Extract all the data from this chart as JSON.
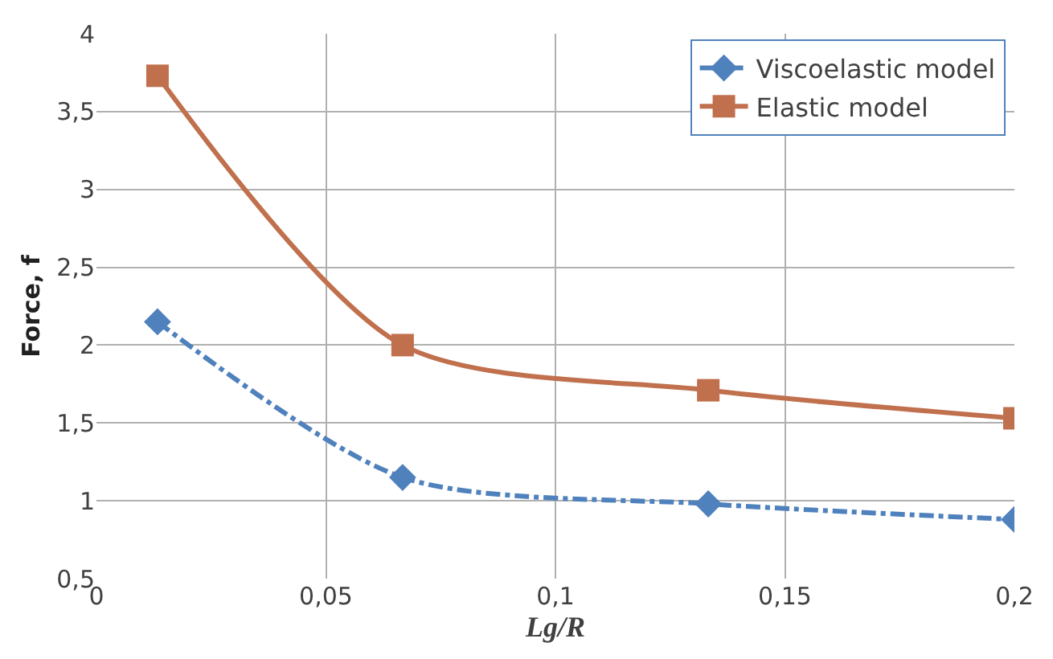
{
  "chart_data": {
    "type": "line",
    "xlabel": "Lg/R",
    "ylabel": "Force, f",
    "x": [
      0.0133,
      0.0667,
      0.1333,
      0.2
    ],
    "series": [
      {
        "name": "Viscoelastic model",
        "color": "#4f81bd",
        "values": [
          2.15,
          1.15,
          0.98,
          0.88
        ],
        "marker": "diamond",
        "line_style": "dashed"
      },
      {
        "name": "Elastic model",
        "color": "#c0704d",
        "values": [
          3.73,
          2.0,
          1.71,
          1.53
        ],
        "marker": "square",
        "line_style": "solid"
      }
    ],
    "xlim": [
      0,
      0.2
    ],
    "xticks": [
      0,
      {
        "value": 0.05,
        "label": "0,05"
      },
      {
        "value": 0.1,
        "label": "0,1"
      },
      {
        "value": 0.15,
        "label": "0,15"
      },
      {
        "value": 0.2,
        "label": "0,2"
      }
    ],
    "ylim": [
      0.5,
      4
    ],
    "yticks": [
      {
        "value": 0.5,
        "label": "0,5"
      },
      1,
      {
        "value": 1.5,
        "label": "1,5"
      },
      2,
      {
        "value": 2.5,
        "label": "2,5"
      },
      3,
      {
        "value": 3.5,
        "label": "3,5"
      },
      4
    ],
    "grid": true,
    "legend": "top right"
  }
}
